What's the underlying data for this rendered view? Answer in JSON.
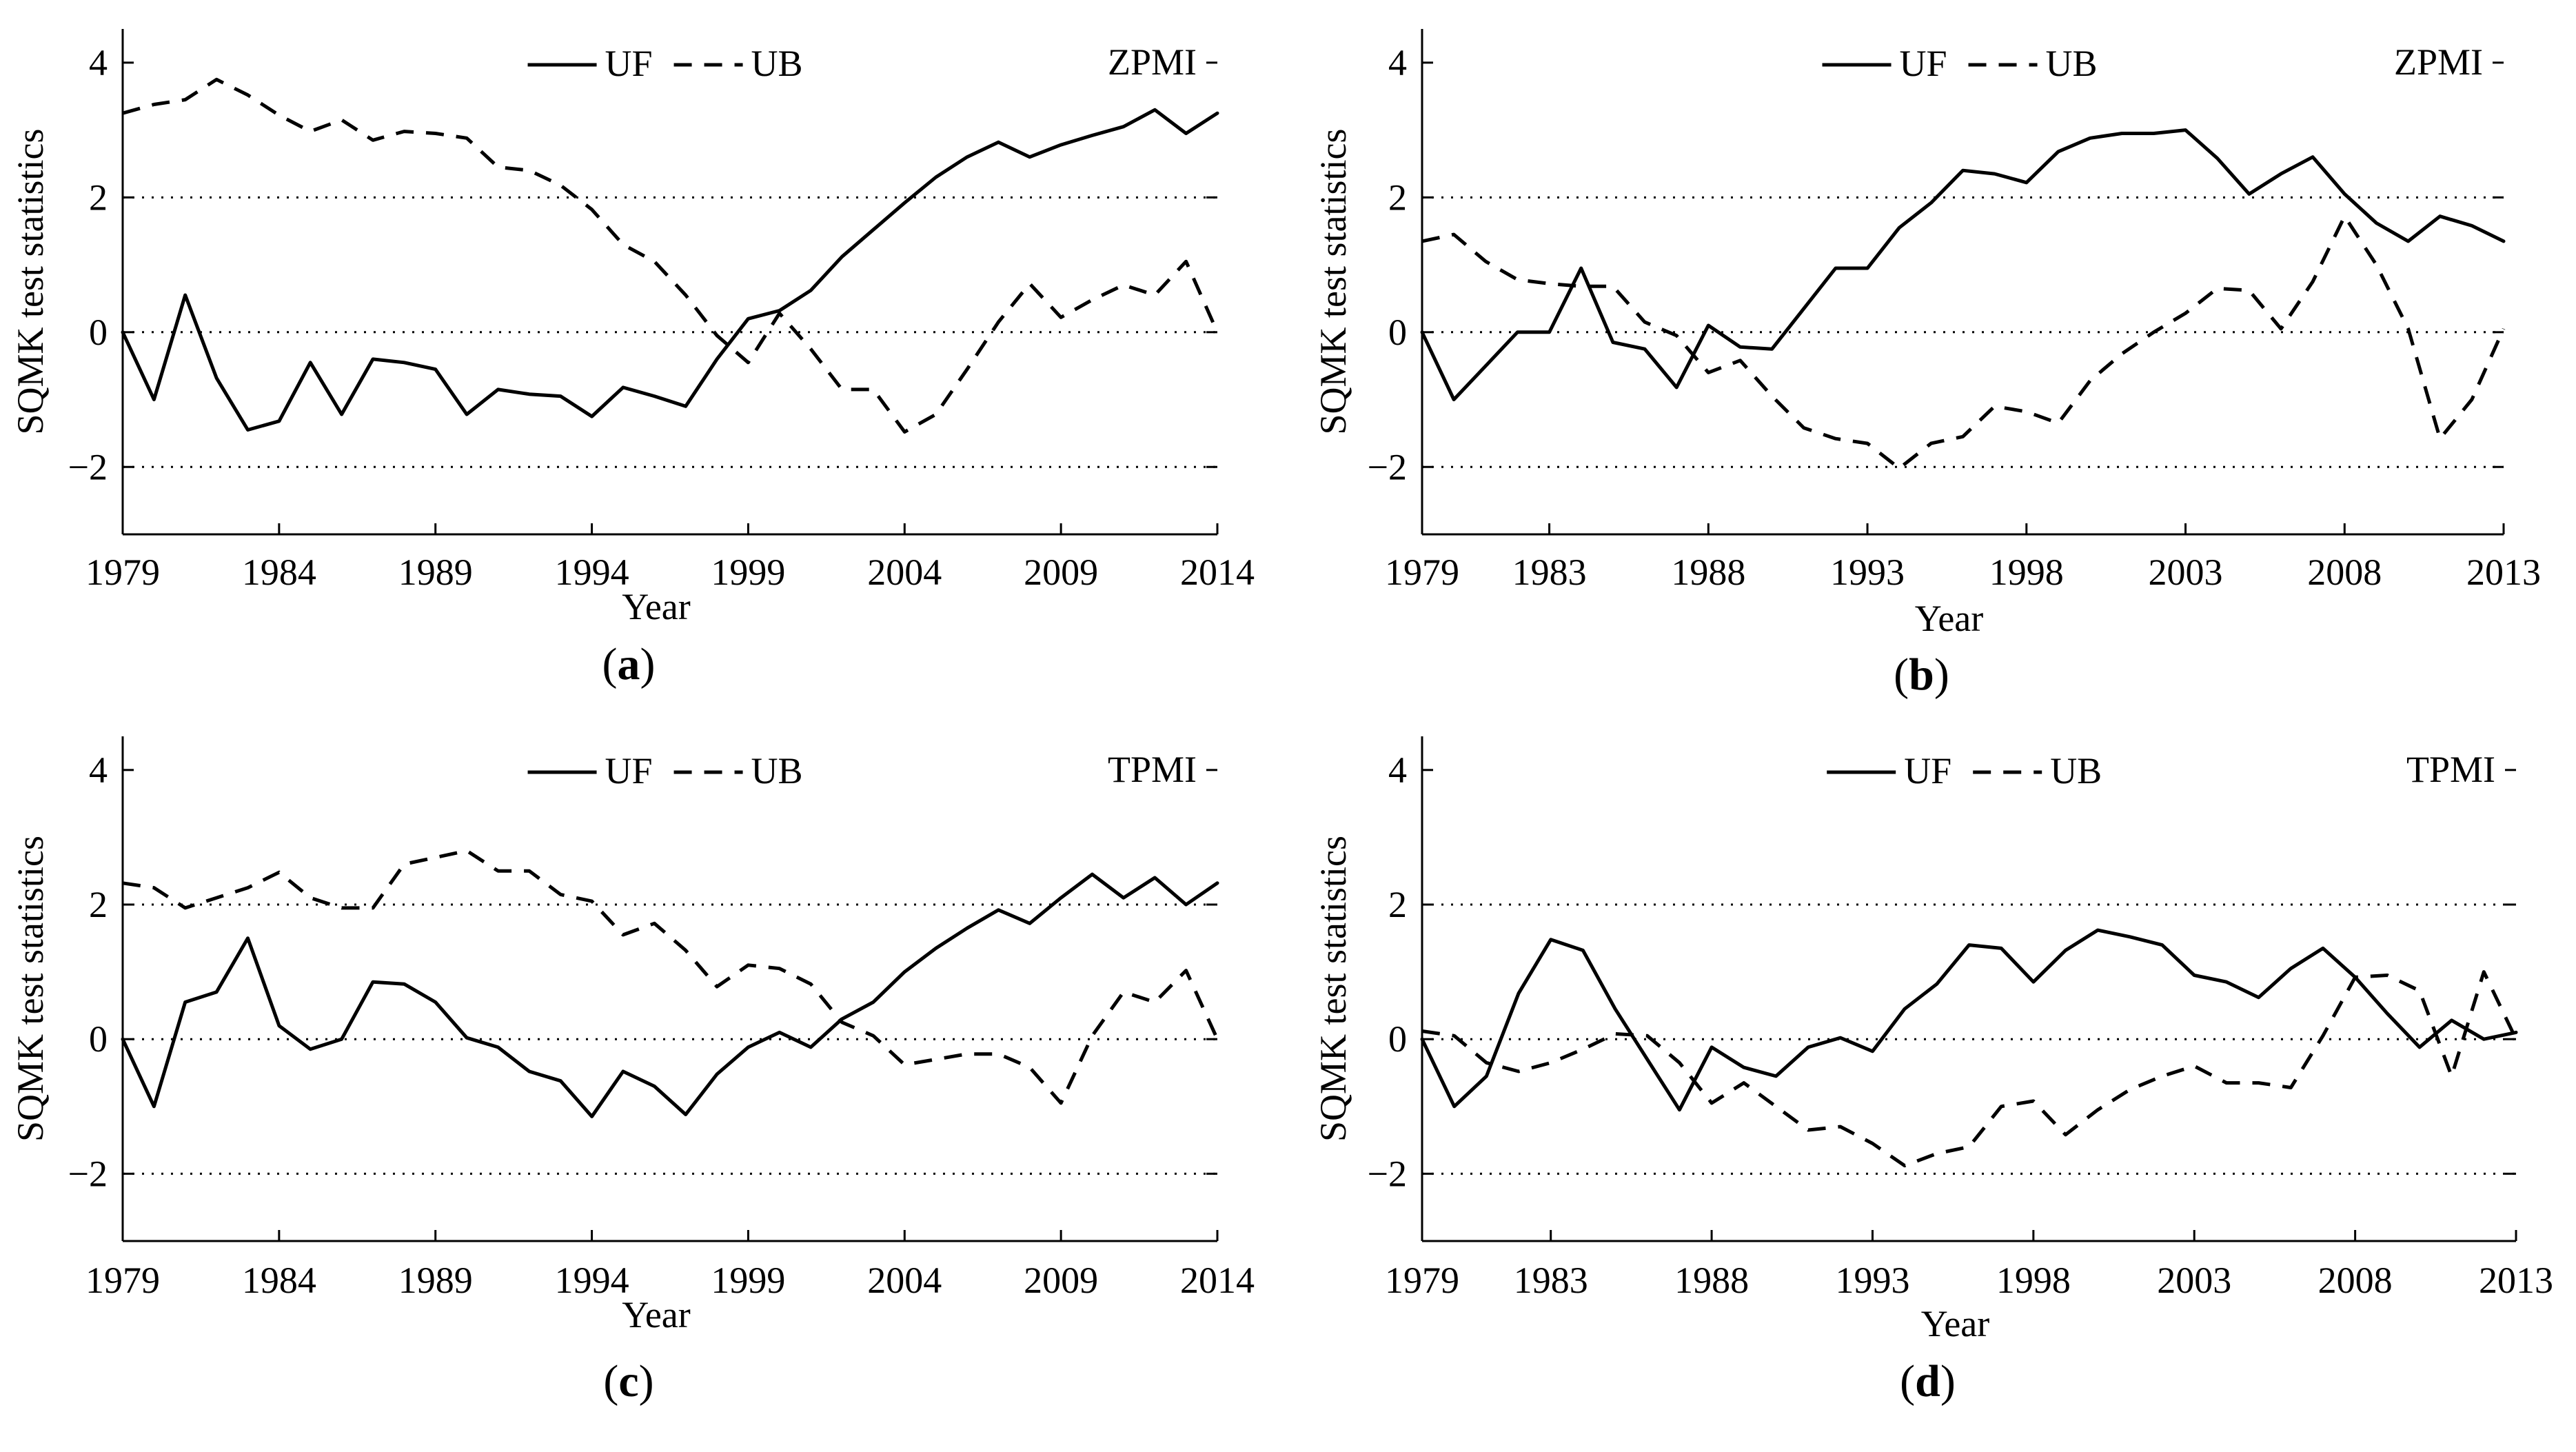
{
  "chart_data": [
    {
      "type": "line",
      "panel_label": "a",
      "index_label": "ZPMI",
      "xlabel": "Year",
      "ylabel": "SQMK test statistics",
      "xlim": [
        1979,
        2014
      ],
      "ylim": [
        -3,
        4.5
      ],
      "xticks": [
        "1979",
        "1984",
        "1989",
        "1994",
        "1999",
        "2004",
        "2009",
        "2014"
      ],
      "yticks": [
        "4",
        "2",
        "0",
        "−2"
      ],
      "reference_lines": [
        2,
        0,
        -2
      ],
      "x": [
        1979,
        1980,
        1981,
        1982,
        1983,
        1984,
        1985,
        1986,
        1987,
        1988,
        1989,
        1990,
        1991,
        1992,
        1993,
        1994,
        1995,
        1996,
        1997,
        1998,
        1999,
        2000,
        2001,
        2002,
        2003,
        2004,
        2005,
        2006,
        2007,
        2008,
        2009,
        2010,
        2011,
        2012,
        2013,
        2014
      ],
      "series": [
        {
          "name": "UF",
          "style": "solid",
          "values": [
            0,
            -1.0,
            0.55,
            -0.68,
            -1.45,
            -1.32,
            -0.45,
            -1.22,
            -0.4,
            -0.45,
            -0.55,
            -1.22,
            -0.85,
            -0.92,
            -0.95,
            -1.25,
            -0.82,
            -0.95,
            -1.1,
            -0.4,
            0.2,
            0.32,
            0.62,
            1.12,
            1.52,
            1.92,
            2.3,
            2.6,
            2.82,
            2.6,
            2.78,
            2.92,
            3.05,
            3.3,
            2.95,
            3.25
          ]
        },
        {
          "name": "UB",
          "style": "dashed",
          "values": [
            3.25,
            3.38,
            3.45,
            3.75,
            3.52,
            3.22,
            2.98,
            3.15,
            2.85,
            2.98,
            2.95,
            2.88,
            2.45,
            2.4,
            2.18,
            1.82,
            1.3,
            1.05,
            0.55,
            -0.05,
            -0.45,
            0.28,
            -0.25,
            -0.85,
            -0.85,
            -1.48,
            -1.22,
            -0.55,
            0.15,
            0.72,
            0.22,
            0.48,
            0.7,
            0.55,
            1.05,
            0.0
          ]
        }
      ]
    },
    {
      "type": "line",
      "panel_label": "b",
      "index_label": "ZPMI",
      "xlabel": "Year",
      "ylabel": "SQMK test statistics",
      "xlim": [
        1979,
        2013
      ],
      "ylim": [
        -3,
        4.5
      ],
      "xticks": [
        "1979",
        "1983",
        "1988",
        "1993",
        "1998",
        "2003",
        "2008",
        "2013"
      ],
      "yticks": [
        "4",
        "2",
        "0",
        "−2"
      ],
      "reference_lines": [
        2,
        0,
        -2
      ],
      "x": [
        1979,
        1980,
        1981,
        1982,
        1983,
        1984,
        1985,
        1986,
        1987,
        1988,
        1989,
        1990,
        1991,
        1992,
        1993,
        1994,
        1995,
        1996,
        1997,
        1998,
        1999,
        2000,
        2001,
        2002,
        2003,
        2004,
        2005,
        2006,
        2007,
        2008,
        2009,
        2010,
        2011,
        2012,
        2013
      ],
      "series": [
        {
          "name": "UF",
          "style": "solid",
          "values": [
            0,
            -1.0,
            -0.5,
            0,
            0,
            0.95,
            -0.15,
            -0.25,
            -0.82,
            0.1,
            -0.22,
            -0.25,
            0.35,
            0.95,
            0.95,
            1.55,
            1.92,
            2.4,
            2.35,
            2.22,
            2.68,
            2.88,
            2.95,
            2.95,
            3.0,
            2.58,
            2.05,
            2.35,
            2.6,
            2.05,
            1.62,
            1.35,
            1.72,
            1.58,
            1.35
          ]
        },
        {
          "name": "UB",
          "style": "dashed",
          "values": [
            1.35,
            1.45,
            1.05,
            0.78,
            0.72,
            0.68,
            0.68,
            0.15,
            -0.05,
            -0.6,
            -0.42,
            -0.95,
            -1.42,
            -1.58,
            -1.65,
            -2.02,
            -1.65,
            -1.55,
            -1.1,
            -1.18,
            -1.35,
            -0.72,
            -0.32,
            0.0,
            0.28,
            0.65,
            0.62,
            0.05,
            0.75,
            1.72,
            1.0,
            0.05,
            -1.58,
            -1.0,
            0.05
          ]
        }
      ]
    },
    {
      "type": "line",
      "panel_label": "c",
      "index_label": "TPMI",
      "xlabel": "Year",
      "ylabel": "SQMK test statistics",
      "xlim": [
        1979,
        2014
      ],
      "ylim": [
        -3,
        4.5
      ],
      "xticks": [
        "1979",
        "1984",
        "1989",
        "1994",
        "1999",
        "2004",
        "2009",
        "2014"
      ],
      "yticks": [
        "4",
        "2",
        "0",
        "−2"
      ],
      "reference_lines": [
        2,
        0,
        -2
      ],
      "x": [
        1979,
        1980,
        1981,
        1982,
        1983,
        1984,
        1985,
        1986,
        1987,
        1988,
        1989,
        1990,
        1991,
        1992,
        1993,
        1994,
        1995,
        1996,
        1997,
        1998,
        1999,
        2000,
        2001,
        2002,
        2003,
        2004,
        2005,
        2006,
        2007,
        2008,
        2009,
        2010,
        2011,
        2012,
        2013,
        2014
      ],
      "series": [
        {
          "name": "UF",
          "style": "solid",
          "values": [
            0,
            -1.0,
            0.55,
            0.7,
            1.5,
            0.2,
            -0.15,
            0.0,
            0.85,
            0.82,
            0.55,
            0.02,
            -0.12,
            -0.48,
            -0.62,
            -1.15,
            -0.48,
            -0.7,
            -1.12,
            -0.52,
            -0.12,
            0.1,
            -0.12,
            0.3,
            0.55,
            1.0,
            1.35,
            1.65,
            1.92,
            1.72,
            2.1,
            2.45,
            2.1,
            2.4,
            2.0,
            2.32
          ]
        },
        {
          "name": "UB",
          "style": "dashed",
          "values": [
            2.32,
            2.25,
            1.95,
            2.1,
            2.25,
            2.48,
            2.1,
            1.95,
            1.95,
            2.6,
            2.7,
            2.8,
            2.5,
            2.5,
            2.15,
            2.05,
            1.55,
            1.72,
            1.32,
            0.78,
            1.1,
            1.05,
            0.82,
            0.25,
            0.05,
            -0.38,
            -0.3,
            -0.22,
            -0.22,
            -0.42,
            -0.95,
            0.05,
            0.7,
            0.55,
            1.02,
            0.0
          ]
        }
      ]
    },
    {
      "type": "line",
      "panel_label": "d",
      "index_label": "TPMI",
      "xlabel": "Year",
      "ylabel": "SQMK test statistics",
      "xlim": [
        1979,
        2013
      ],
      "ylim": [
        -3,
        4.5
      ],
      "xticks": [
        "1979",
        "1983",
        "1988",
        "1993",
        "1998",
        "2003",
        "2008",
        "2013"
      ],
      "yticks": [
        "4",
        "2",
        "0",
        "−2"
      ],
      "reference_lines": [
        2,
        0,
        -2
      ],
      "x": [
        1979,
        1980,
        1981,
        1982,
        1983,
        1984,
        1985,
        1986,
        1987,
        1988,
        1989,
        1990,
        1991,
        1992,
        1993,
        1994,
        1995,
        1996,
        1997,
        1998,
        1999,
        2000,
        2001,
        2002,
        2003,
        2004,
        2005,
        2006,
        2007,
        2008,
        2009,
        2010,
        2011,
        2012,
        2013
      ],
      "series": [
        {
          "name": "UF",
          "style": "solid",
          "values": [
            0,
            -1.0,
            -0.55,
            0.68,
            1.48,
            1.32,
            0.45,
            -0.3,
            -1.05,
            -0.12,
            -0.42,
            -0.55,
            -0.12,
            0.02,
            -0.18,
            0.45,
            0.82,
            1.4,
            1.35,
            0.85,
            1.32,
            1.62,
            1.52,
            1.4,
            0.95,
            0.85,
            0.62,
            1.05,
            1.35,
            0.92,
            0.38,
            -0.12,
            0.28,
            0.0,
            0.1
          ]
        },
        {
          "name": "UB",
          "style": "dashed",
          "values": [
            0.12,
            0.05,
            -0.35,
            -0.48,
            -0.35,
            -0.15,
            0.08,
            0.05,
            -0.35,
            -0.95,
            -0.65,
            -1.0,
            -1.35,
            -1.3,
            -1.55,
            -1.88,
            -1.7,
            -1.6,
            -1.0,
            -0.92,
            -1.42,
            -1.05,
            -0.75,
            -0.55,
            -0.4,
            -0.65,
            -0.65,
            -0.72,
            0.05,
            0.92,
            0.95,
            0.72,
            -0.55,
            1.0,
            0.0
          ]
        }
      ]
    }
  ]
}
